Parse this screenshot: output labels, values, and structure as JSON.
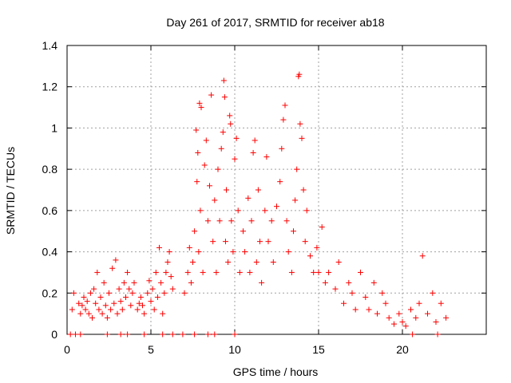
{
  "chart_data": {
    "type": "scatter",
    "title": "Day 261 of 2017, SRMTID for receiver ab18",
    "xlabel": "GPS time / hours",
    "ylabel": "SRMTID / TECUs",
    "xlim": [
      0,
      25
    ],
    "ylim": [
      0,
      1.4
    ],
    "x_ticks": [
      0,
      5,
      10,
      15,
      20
    ],
    "y_ticks": [
      0,
      0.2,
      0.4,
      0.6,
      0.8,
      1,
      1.2,
      1.4
    ],
    "x_tick_labels": [
      "0",
      "5",
      "10",
      "15",
      "20"
    ],
    "y_tick_labels": [
      "0",
      "0.2",
      "0.4",
      "0.6",
      "0.8",
      "1",
      "1.2",
      "1.4"
    ],
    "grid": true,
    "marker_color": "#ff0000",
    "series": [
      {
        "name": "SRMTID",
        "marker": "plus",
        "points": [
          [
            0.3,
            0.12
          ],
          [
            0.4,
            0.2
          ],
          [
            0.7,
            0.15
          ],
          [
            0.8,
            0.1
          ],
          [
            0.9,
            0.14
          ],
          [
            1.0,
            0.18
          ],
          [
            1.1,
            0.12
          ],
          [
            1.2,
            0.16
          ],
          [
            1.3,
            0.1
          ],
          [
            1.4,
            0.2
          ],
          [
            1.5,
            0.08
          ],
          [
            1.6,
            0.22
          ],
          [
            1.7,
            0.15
          ],
          [
            1.8,
            0.3
          ],
          [
            1.9,
            0.12
          ],
          [
            2.0,
            0.18
          ],
          [
            2.1,
            0.1
          ],
          [
            2.2,
            0.25
          ],
          [
            2.3,
            0.14
          ],
          [
            2.4,
            0.08
          ],
          [
            2.5,
            0.2
          ],
          [
            2.6,
            0.12
          ],
          [
            2.7,
            0.32
          ],
          [
            2.8,
            0.15
          ],
          [
            2.9,
            0.36
          ],
          [
            3.0,
            0.1
          ],
          [
            3.1,
            0.22
          ],
          [
            3.2,
            0.16
          ],
          [
            3.3,
            0.12
          ],
          [
            3.4,
            0.25
          ],
          [
            3.5,
            0.18
          ],
          [
            3.6,
            0.3
          ],
          [
            3.7,
            0.22
          ],
          [
            3.8,
            0.14
          ],
          [
            3.9,
            0.2
          ],
          [
            4.0,
            0.25
          ],
          [
            4.2,
            0.12
          ],
          [
            4.3,
            0.15
          ],
          [
            4.4,
            0.18
          ],
          [
            4.5,
            0.14
          ],
          [
            4.6,
            0.1
          ],
          [
            4.8,
            0.2
          ],
          [
            4.9,
            0.26
          ],
          [
            5.0,
            0.16
          ],
          [
            5.1,
            0.22
          ],
          [
            5.2,
            0.12
          ],
          [
            5.3,
            0.3
          ],
          [
            5.4,
            0.18
          ],
          [
            5.5,
            0.42
          ],
          [
            5.6,
            0.25
          ],
          [
            5.7,
            0.1
          ],
          [
            5.8,
            0.2
          ],
          [
            5.9,
            0.3
          ],
          [
            6.0,
            0.35
          ],
          [
            6.1,
            0.4
          ],
          [
            6.2,
            0.28
          ],
          [
            6.3,
            0.22
          ],
          [
            7.0,
            0.2
          ],
          [
            7.2,
            0.3
          ],
          [
            7.3,
            0.42
          ],
          [
            7.4,
            0.25
          ],
          [
            7.5,
            0.35
          ],
          [
            7.6,
            0.5
          ],
          [
            7.7,
            0.99
          ],
          [
            7.75,
            0.74
          ],
          [
            7.8,
            0.88
          ],
          [
            7.85,
            0.4
          ],
          [
            7.9,
            1.12
          ],
          [
            7.95,
            0.6
          ],
          [
            8.0,
            1.1
          ],
          [
            8.1,
            0.3
          ],
          [
            8.2,
            0.82
          ],
          [
            8.3,
            0.94
          ],
          [
            8.4,
            0.55
          ],
          [
            8.5,
            0.72
          ],
          [
            8.6,
            1.16
          ],
          [
            8.7,
            0.45
          ],
          [
            8.8,
            0.65
          ],
          [
            8.9,
            0.3
          ],
          [
            9.0,
            0.8
          ],
          [
            9.1,
            0.55
          ],
          [
            9.2,
            0.9
          ],
          [
            9.3,
            0.98
          ],
          [
            9.35,
            1.23
          ],
          [
            9.4,
            1.15
          ],
          [
            9.45,
            0.45
          ],
          [
            9.5,
            0.7
          ],
          [
            9.6,
            0.35
          ],
          [
            9.7,
            1.06
          ],
          [
            9.75,
            1.02
          ],
          [
            9.8,
            0.55
          ],
          [
            9.9,
            0.4
          ],
          [
            10.0,
            0.85
          ],
          [
            10.1,
            0.95
          ],
          [
            10.2,
            0.6
          ],
          [
            10.3,
            0.3
          ],
          [
            10.5,
            0.5
          ],
          [
            10.6,
            0.4
          ],
          [
            10.8,
            0.66
          ],
          [
            10.9,
            0.3
          ],
          [
            11.0,
            0.55
          ],
          [
            11.1,
            0.88
          ],
          [
            11.2,
            0.94
          ],
          [
            11.3,
            0.35
          ],
          [
            11.4,
            0.7
          ],
          [
            11.5,
            0.45
          ],
          [
            11.6,
            0.25
          ],
          [
            11.8,
            0.6
          ],
          [
            11.9,
            0.86
          ],
          [
            12.0,
            0.45
          ],
          [
            12.2,
            0.55
          ],
          [
            12.3,
            0.35
          ],
          [
            12.5,
            0.62
          ],
          [
            12.7,
            0.74
          ],
          [
            12.8,
            0.9
          ],
          [
            12.9,
            1.04
          ],
          [
            13.0,
            1.11
          ],
          [
            13.1,
            0.55
          ],
          [
            13.2,
            0.4
          ],
          [
            13.4,
            0.3
          ],
          [
            13.5,
            0.5
          ],
          [
            13.6,
            0.65
          ],
          [
            13.7,
            0.8
          ],
          [
            13.8,
            1.25
          ],
          [
            13.85,
            1.26
          ],
          [
            13.9,
            1.02
          ],
          [
            14.0,
            0.95
          ],
          [
            14.1,
            0.7
          ],
          [
            14.2,
            0.45
          ],
          [
            14.3,
            0.6
          ],
          [
            14.5,
            0.38
          ],
          [
            14.7,
            0.3
          ],
          [
            14.9,
            0.42
          ],
          [
            15.0,
            0.3
          ],
          [
            15.2,
            0.52
          ],
          [
            15.4,
            0.25
          ],
          [
            15.6,
            0.3
          ],
          [
            16.0,
            0.22
          ],
          [
            16.2,
            0.35
          ],
          [
            16.5,
            0.15
          ],
          [
            16.8,
            0.25
          ],
          [
            17.0,
            0.2
          ],
          [
            17.2,
            0.12
          ],
          [
            17.5,
            0.3
          ],
          [
            17.8,
            0.18
          ],
          [
            18.0,
            0.12
          ],
          [
            18.3,
            0.25
          ],
          [
            18.5,
            0.1
          ],
          [
            18.8,
            0.2
          ],
          [
            19.0,
            0.15
          ],
          [
            19.2,
            0.08
          ],
          [
            19.5,
            0.05
          ],
          [
            19.8,
            0.1
          ],
          [
            20.0,
            0.06
          ],
          [
            20.2,
            0.04
          ],
          [
            20.5,
            0.12
          ],
          [
            20.8,
            0.08
          ],
          [
            21.0,
            0.15
          ],
          [
            21.2,
            0.38
          ],
          [
            21.5,
            0.1
          ],
          [
            21.8,
            0.2
          ],
          [
            22.0,
            0.06
          ],
          [
            22.3,
            0.15
          ],
          [
            22.6,
            0.08
          ],
          [
            0.2,
            0.0
          ],
          [
            0.5,
            0.0
          ],
          [
            0.8,
            0.0
          ],
          [
            2.4,
            0.0
          ],
          [
            3.2,
            0.0
          ],
          [
            3.6,
            0.0
          ],
          [
            4.6,
            0.0
          ],
          [
            5.7,
            0.0
          ],
          [
            6.3,
            0.0
          ],
          [
            6.9,
            0.0
          ],
          [
            7.6,
            0.0
          ],
          [
            8.4,
            0.0
          ],
          [
            8.8,
            0.0
          ],
          [
            10.0,
            0.0
          ],
          [
            20.6,
            0.0
          ],
          [
            22.1,
            0.0
          ]
        ]
      }
    ]
  }
}
